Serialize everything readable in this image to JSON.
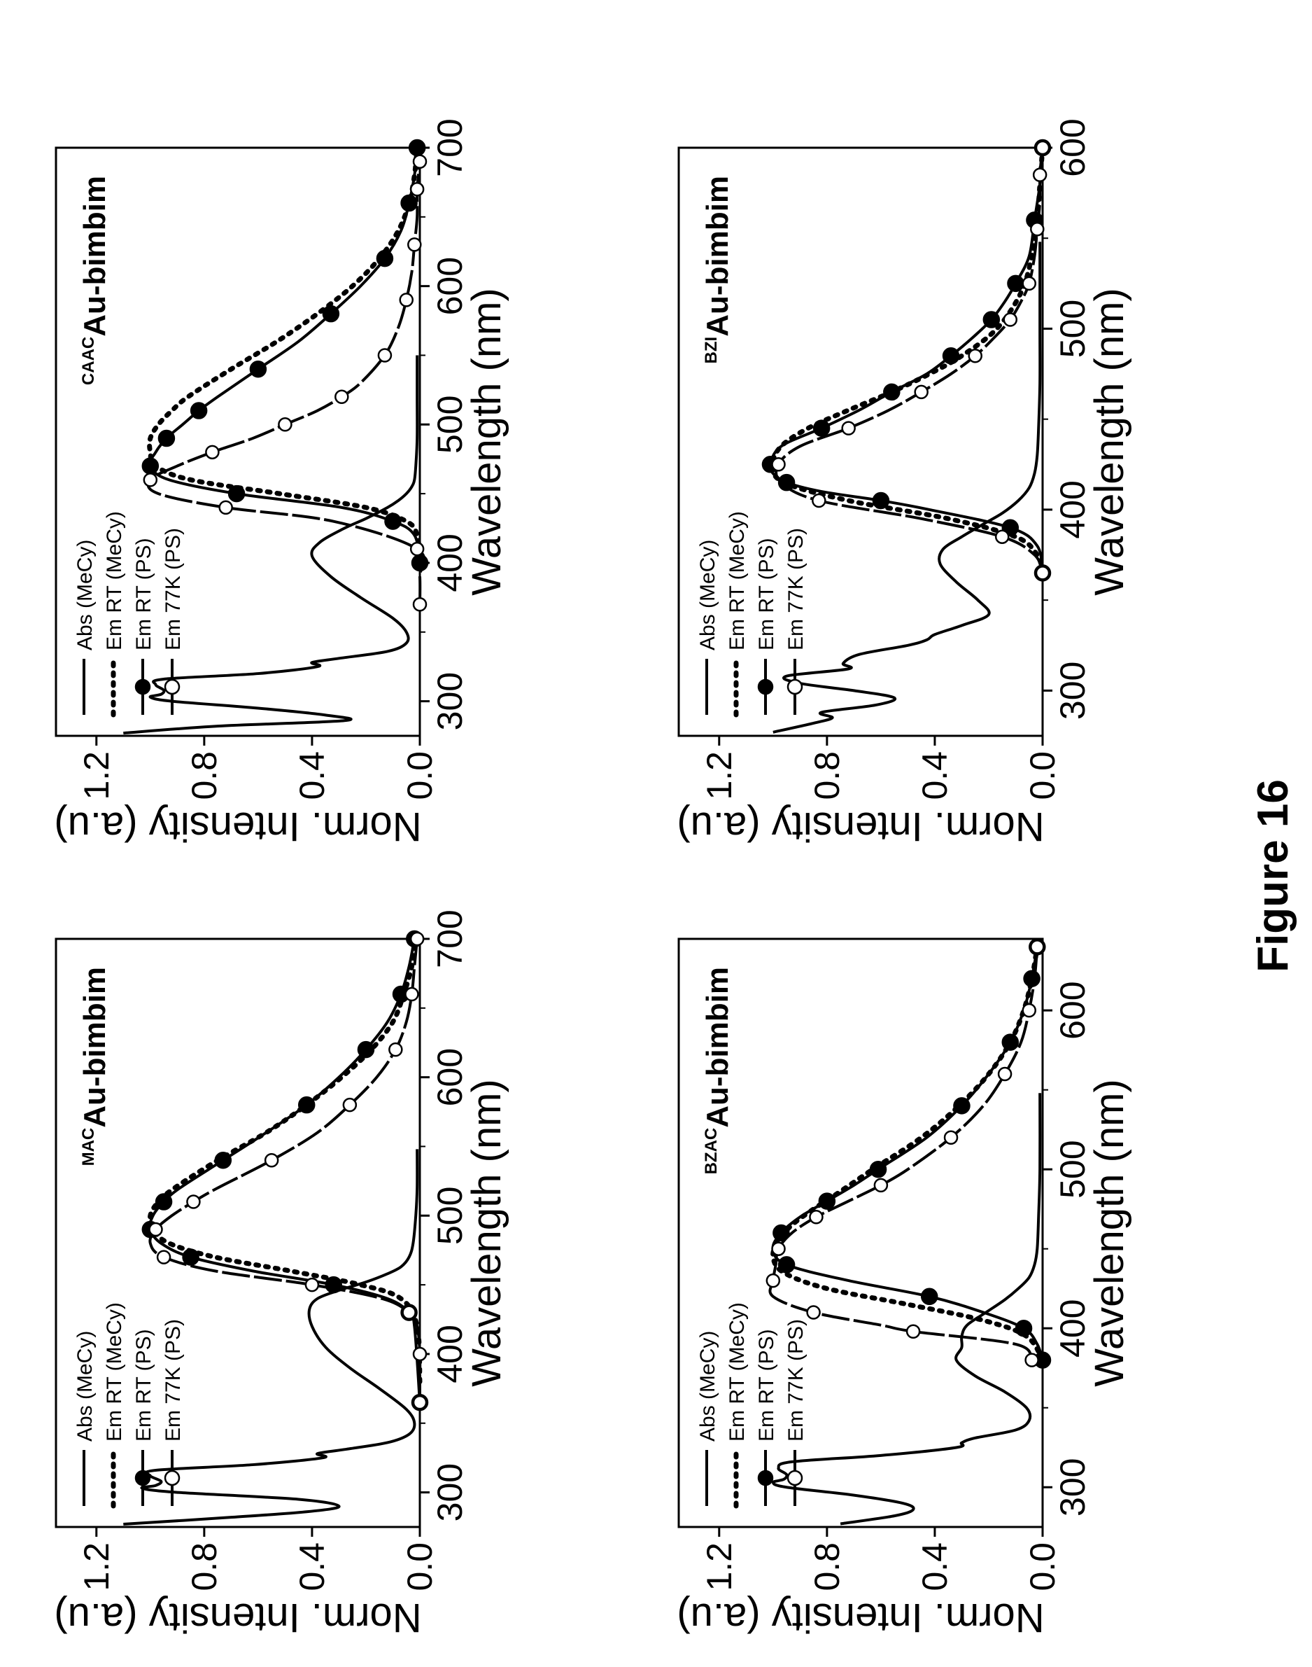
{
  "figure_caption": "Figure 16",
  "chart_data": [
    {
      "id": "mac",
      "type": "line",
      "title_sup": "MAC",
      "title_main": "Au-bimbim",
      "xlabel": "Wavelength (nm)",
      "ylabel": "Norm. Intensity (a.u)",
      "xlim": [
        275,
        700
      ],
      "ylim": [
        0,
        1.35
      ],
      "xticks": [
        300,
        400,
        500,
        600,
        700
      ],
      "xtick_labels": [
        "300",
        "400",
        "500",
        "600",
        "700"
      ],
      "yticks": [
        0.0,
        0.4,
        0.8,
        1.2
      ],
      "ytick_labels": [
        "0.0",
        "0.4",
        "0.8",
        "1.2"
      ],
      "legend_position": "top-left",
      "series": [
        {
          "name": "Abs (MeCy)",
          "style": "solid",
          "x": [
            277,
            282,
            286,
            290,
            295,
            300,
            303,
            305,
            308,
            312,
            316,
            320,
            325,
            328,
            331,
            336,
            342,
            350,
            360,
            375,
            390,
            405,
            420,
            432,
            440,
            446,
            452,
            458,
            463,
            470,
            480,
            500,
            520,
            548
          ],
          "y": [
            1.1,
            0.7,
            0.42,
            0.3,
            0.45,
            0.9,
            1.03,
            0.98,
            0.96,
            1.0,
            0.98,
            0.62,
            0.36,
            0.38,
            0.28,
            0.12,
            0.04,
            0.02,
            0.05,
            0.15,
            0.26,
            0.35,
            0.4,
            0.41,
            0.38,
            0.3,
            0.2,
            0.12,
            0.07,
            0.04,
            0.025,
            0.015,
            0.01,
            0.01
          ]
        },
        {
          "name": "Em RT (MeCy)",
          "style": "dotted",
          "x": [
            380,
            420,
            440,
            450,
            460,
            470,
            480,
            490,
            500,
            510,
            520,
            540,
            560,
            580,
            600,
            620,
            640,
            660,
            680,
            700
          ],
          "y": [
            0.0,
            0.01,
            0.07,
            0.22,
            0.48,
            0.76,
            0.93,
            0.99,
            1.0,
            0.97,
            0.91,
            0.75,
            0.57,
            0.42,
            0.29,
            0.18,
            0.1,
            0.06,
            0.03,
            0.02
          ]
        },
        {
          "name": "Em RT (PS)",
          "style": "solid-filled-markers",
          "x": [
            365,
            420,
            430,
            440,
            450,
            460,
            470,
            480,
            490,
            500,
            510,
            520,
            540,
            560,
            580,
            600,
            620,
            640,
            660,
            680,
            700
          ],
          "y": [
            0.0,
            0.02,
            0.04,
            0.12,
            0.32,
            0.62,
            0.85,
            0.96,
            1.0,
            0.99,
            0.95,
            0.89,
            0.73,
            0.57,
            0.42,
            0.3,
            0.2,
            0.12,
            0.07,
            0.04,
            0.02
          ]
        },
        {
          "name": "Em 77K (PS)",
          "style": "dashed-open-markers",
          "x": [
            365,
            383,
            400,
            420,
            430,
            440,
            450,
            460,
            470,
            480,
            490,
            500,
            510,
            520,
            540,
            560,
            580,
            600,
            620,
            640,
            660,
            680,
            700
          ],
          "y": [
            0.0,
            0.0,
            0.0,
            0.01,
            0.04,
            0.14,
            0.4,
            0.76,
            0.95,
            1.0,
            0.98,
            0.92,
            0.84,
            0.75,
            0.55,
            0.38,
            0.26,
            0.16,
            0.09,
            0.05,
            0.03,
            0.02,
            0.01
          ]
        }
      ]
    },
    {
      "id": "caac",
      "type": "line",
      "title_sup": "CAAC",
      "title_main": "Au-bimbim",
      "xlabel": "Wavelength (nm)",
      "ylabel": "Norm. Intensity (a.u)",
      "xlim": [
        275,
        700
      ],
      "ylim": [
        0,
        1.35
      ],
      "xticks": [
        300,
        400,
        500,
        600,
        700
      ],
      "xtick_labels": [
        "300",
        "400",
        "500",
        "600",
        "700"
      ],
      "yticks": [
        0.0,
        0.4,
        0.8,
        1.2
      ],
      "ytick_labels": [
        "0.0",
        "0.4",
        "0.8",
        "1.2"
      ],
      "legend_position": "top-left",
      "series": [
        {
          "name": "Abs (MeCy)",
          "style": "solid",
          "x": [
            277,
            282,
            286,
            290,
            295,
            300,
            303,
            305,
            308,
            312,
            316,
            320,
            325,
            328,
            331,
            336,
            342,
            350,
            360,
            375,
            390,
            405,
            415,
            425,
            432,
            440,
            445,
            450,
            455,
            460,
            470,
            490,
            520,
            550
          ],
          "y": [
            1.1,
            0.75,
            0.28,
            0.35,
            0.6,
            0.92,
            1.0,
            0.96,
            0.95,
            0.98,
            0.95,
            0.6,
            0.38,
            0.4,
            0.3,
            0.12,
            0.05,
            0.05,
            0.1,
            0.22,
            0.33,
            0.4,
            0.37,
            0.28,
            0.2,
            0.12,
            0.08,
            0.05,
            0.03,
            0.02,
            0.015,
            0.01,
            0.01,
            0.01
          ]
        },
        {
          "name": "Em RT (MeCy)",
          "style": "dotted",
          "x": [
            400,
            420,
            430,
            440,
            450,
            460,
            470,
            480,
            490,
            500,
            510,
            520,
            540,
            560,
            580,
            600,
            620,
            640,
            660,
            680,
            700
          ],
          "y": [
            0.0,
            0.01,
            0.05,
            0.2,
            0.52,
            0.85,
            0.98,
            1.0,
            1.0,
            0.97,
            0.92,
            0.86,
            0.7,
            0.53,
            0.38,
            0.25,
            0.15,
            0.08,
            0.04,
            0.02,
            0.01
          ]
        },
        {
          "name": "Em RT (PS)",
          "style": "solid-filled-markers",
          "x": [
            400,
            420,
            430,
            440,
            450,
            460,
            470,
            480,
            490,
            500,
            510,
            520,
            540,
            560,
            580,
            600,
            620,
            640,
            660,
            680,
            700
          ],
          "y": [
            0.0,
            0.02,
            0.1,
            0.29,
            0.68,
            0.93,
            1.0,
            0.98,
            0.94,
            0.88,
            0.82,
            0.75,
            0.6,
            0.45,
            0.33,
            0.22,
            0.13,
            0.07,
            0.04,
            0.02,
            0.01
          ]
        },
        {
          "name": "Em 77K (PS)",
          "style": "dashed-open-markers",
          "x": [
            370,
            390,
            410,
            430,
            440,
            450,
            460,
            470,
            480,
            490,
            500,
            510,
            520,
            530,
            550,
            570,
            590,
            610,
            630,
            650,
            670,
            690
          ],
          "y": [
            0.0,
            0.0,
            0.01,
            0.32,
            0.72,
            0.97,
            1.0,
            0.9,
            0.77,
            0.62,
            0.5,
            0.38,
            0.29,
            0.22,
            0.13,
            0.08,
            0.05,
            0.03,
            0.02,
            0.01,
            0.01,
            0.0
          ]
        }
      ]
    },
    {
      "id": "bzac",
      "type": "line",
      "title_sup": "BZAC",
      "title_main": "Au-bimbim",
      "xlabel": "Wavelength (nm)",
      "ylabel": "Norm. Intensity (a.u)",
      "xlim": [
        275,
        645
      ],
      "ylim": [
        0,
        1.35
      ],
      "xticks": [
        300,
        400,
        500,
        600
      ],
      "xtick_labels": [
        "300",
        "400",
        "500",
        "600"
      ],
      "yticks": [
        0.0,
        0.4,
        0.8,
        1.2
      ],
      "ytick_labels": [
        "0.0",
        "0.4",
        "0.8",
        "1.2"
      ],
      "legend_position": "top-left",
      "series": [
        {
          "name": "Abs (MeCy)",
          "style": "solid",
          "x": [
            277,
            282,
            286,
            290,
            295,
            300,
            303,
            305,
            308,
            312,
            316,
            320,
            325,
            328,
            331,
            336,
            342,
            350,
            360,
            370,
            380,
            388,
            395,
            402,
            410,
            418,
            425,
            432,
            440,
            450,
            470,
            500,
            548
          ],
          "y": [
            0.75,
            0.55,
            0.48,
            0.52,
            0.7,
            0.95,
            1.0,
            0.96,
            0.95,
            0.98,
            0.93,
            0.6,
            0.32,
            0.3,
            0.25,
            0.1,
            0.05,
            0.06,
            0.14,
            0.25,
            0.32,
            0.3,
            0.3,
            0.28,
            0.21,
            0.14,
            0.09,
            0.05,
            0.03,
            0.02,
            0.015,
            0.01,
            0.01
          ]
        },
        {
          "name": "Em RT (MeCy)",
          "style": "dotted",
          "x": [
            380,
            395,
            405,
            415,
            425,
            435,
            445,
            455,
            465,
            475,
            485,
            500,
            520,
            540,
            560,
            580,
            600,
            620,
            640
          ],
          "y": [
            0.0,
            0.06,
            0.22,
            0.5,
            0.8,
            0.96,
            1.0,
            0.98,
            0.93,
            0.85,
            0.76,
            0.63,
            0.45,
            0.31,
            0.2,
            0.12,
            0.07,
            0.04,
            0.02
          ]
        },
        {
          "name": "Em RT (PS)",
          "style": "solid-filled-markers",
          "x": [
            380,
            390,
            400,
            410,
            420,
            430,
            440,
            450,
            460,
            470,
            480,
            490,
            500,
            520,
            540,
            560,
            580,
            600,
            620,
            640
          ],
          "y": [
            0.0,
            0.02,
            0.07,
            0.22,
            0.42,
            0.72,
            0.95,
            1.0,
            0.97,
            0.9,
            0.8,
            0.7,
            0.61,
            0.43,
            0.3,
            0.2,
            0.12,
            0.07,
            0.04,
            0.02
          ]
        },
        {
          "name": "Em 77K (PS)",
          "style": "dashed-open-markers",
          "x": [
            380,
            390,
            398,
            402,
            410,
            420,
            430,
            440,
            450,
            460,
            470,
            480,
            490,
            500,
            520,
            540,
            560,
            580,
            600,
            620,
            640
          ],
          "y": [
            0.04,
            0.1,
            0.48,
            0.6,
            0.85,
            1.0,
            1.0,
            0.99,
            0.98,
            0.93,
            0.84,
            0.72,
            0.6,
            0.5,
            0.34,
            0.22,
            0.14,
            0.08,
            0.05,
            0.03,
            0.02
          ]
        }
      ]
    },
    {
      "id": "bzi",
      "type": "line",
      "title_sup": "BZI",
      "title_main": "Au-bimbim",
      "xlabel": "Wavelength (nm)",
      "ylabel": "Norm. Intensity (a.u)",
      "xlim": [
        275,
        600
      ],
      "ylim": [
        0,
        1.35
      ],
      "xticks": [
        300,
        400,
        500,
        600
      ],
      "xtick_labels": [
        "300",
        "400",
        "500",
        "600"
      ],
      "yticks": [
        0.0,
        0.4,
        0.8,
        1.2
      ],
      "ytick_labels": [
        "0.0",
        "0.4",
        "0.8",
        "1.2"
      ],
      "legend_position": "top-left",
      "series": [
        {
          "name": "Abs (MeCy)",
          "style": "solid",
          "x": [
            277,
            282,
            285,
            288,
            292,
            296,
            300,
            304,
            308,
            312,
            315,
            320,
            325,
            328,
            331,
            336,
            342,
            350,
            360,
            370,
            378,
            385,
            392,
            398,
            405,
            412,
            420,
            430,
            445,
            470,
            500,
            548
          ],
          "y": [
            1.0,
            0.85,
            0.78,
            0.82,
            0.62,
            0.55,
            0.7,
            0.9,
            0.95,
            0.72,
            0.74,
            0.68,
            0.5,
            0.43,
            0.4,
            0.3,
            0.2,
            0.24,
            0.32,
            0.38,
            0.37,
            0.3,
            0.22,
            0.15,
            0.09,
            0.05,
            0.03,
            0.02,
            0.015,
            0.01,
            0.01,
            0.01
          ]
        },
        {
          "name": "Em RT (MeCy)",
          "style": "dotted",
          "x": [
            365,
            375,
            385,
            395,
            405,
            415,
            425,
            435,
            445,
            455,
            465,
            475,
            485,
            500,
            520,
            540,
            560,
            580,
            600
          ],
          "y": [
            0.0,
            0.02,
            0.1,
            0.35,
            0.72,
            0.96,
            1.0,
            0.97,
            0.87,
            0.72,
            0.56,
            0.42,
            0.3,
            0.17,
            0.08,
            0.04,
            0.02,
            0.01,
            0.0
          ]
        },
        {
          "name": "Em RT (PS)",
          "style": "solid-filled-markers",
          "x": [
            365,
            380,
            390,
            400,
            405,
            410,
            415,
            420,
            425,
            435,
            445,
            455,
            465,
            475,
            485,
            495,
            505,
            515,
            525,
            540,
            560,
            580,
            600
          ],
          "y": [
            0.0,
            0.02,
            0.12,
            0.42,
            0.6,
            0.82,
            0.95,
            1.0,
            1.01,
            0.97,
            0.82,
            0.68,
            0.56,
            0.43,
            0.34,
            0.26,
            0.19,
            0.14,
            0.1,
            0.05,
            0.03,
            0.01,
            0.0
          ]
        },
        {
          "name": "Em 77K (PS)",
          "style": "dashed-open-markers",
          "x": [
            365,
            375,
            385,
            395,
            405,
            415,
            425,
            435,
            445,
            455,
            465,
            475,
            485,
            495,
            505,
            515,
            525,
            540,
            555,
            570,
            585,
            600
          ],
          "y": [
            0.0,
            0.03,
            0.15,
            0.45,
            0.83,
            0.97,
            0.98,
            0.9,
            0.72,
            0.57,
            0.45,
            0.34,
            0.25,
            0.18,
            0.12,
            0.08,
            0.05,
            0.03,
            0.02,
            0.01,
            0.01,
            0.0
          ]
        }
      ]
    }
  ]
}
